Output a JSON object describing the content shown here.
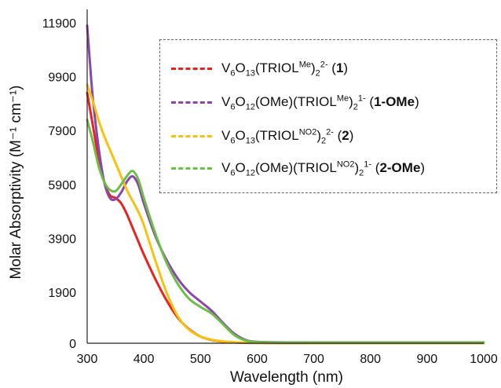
{
  "chart_data": {
    "type": "line",
    "title": "",
    "xlabel": "Wavelength (nm)",
    "ylabel": "Molar Absorptivity (M⁻¹ cm⁻¹)",
    "xlim": [
      300,
      1000
    ],
    "ylim": [
      0,
      12400
    ],
    "x_ticks": [
      "300",
      "400",
      "500",
      "600",
      "700",
      "800",
      "900",
      "1000"
    ],
    "y_ticks": [
      "0",
      "1900",
      "3900",
      "5900",
      "7900",
      "9900",
      "11900"
    ],
    "grid": false,
    "legend_position": "top-right",
    "series": [
      {
        "name": "V6O13(TRIOL^Me)2^2- (1)",
        "color": "#e8231f",
        "x": [
          300,
          310,
          320,
          330,
          340,
          350,
          360,
          370,
          380,
          390,
          400,
          420,
          440,
          460,
          480,
          500,
          520,
          540,
          560,
          580,
          600,
          650,
          700,
          800,
          900,
          1000
        ],
        "y": [
          9300,
          8100,
          6900,
          6000,
          5500,
          5400,
          5200,
          4800,
          4300,
          3800,
          3300,
          2400,
          1600,
          950,
          520,
          250,
          120,
          60,
          30,
          15,
          10,
          5,
          5,
          5,
          5,
          5
        ]
      },
      {
        "name": "V6O12(OMe)(TRIOL^Me)2^1- (1-OMe)",
        "color": "#8a46a8",
        "x": [
          300,
          305,
          310,
          320,
          330,
          340,
          350,
          360,
          370,
          380,
          390,
          400,
          420,
          440,
          460,
          480,
          500,
          520,
          540,
          560,
          580,
          600,
          650,
          700,
          800,
          900,
          1000
        ],
        "y": [
          11800,
          10400,
          9100,
          7300,
          6000,
          5400,
          5350,
          5600,
          6000,
          6200,
          5900,
          5200,
          4000,
          3100,
          2400,
          1900,
          1550,
          1200,
          750,
          350,
          120,
          50,
          30,
          30,
          30,
          30,
          30
        ]
      },
      {
        "name": "V6O13(TRIOL^NO2)2^2- (2)",
        "color": "#f7c20f",
        "x": [
          300,
          310,
          320,
          330,
          340,
          350,
          360,
          370,
          380,
          390,
          400,
          420,
          440,
          460,
          480,
          500,
          520,
          540,
          560,
          580,
          600,
          650,
          700,
          800,
          900,
          1000
        ],
        "y": [
          9600,
          9000,
          8300,
          7700,
          7200,
          6700,
          6200,
          5700,
          5300,
          4900,
          4400,
          3100,
          1900,
          1000,
          500,
          250,
          130,
          70,
          35,
          20,
          10,
          5,
          5,
          5,
          5,
          5
        ]
      },
      {
        "name": "V6O12(OMe)(TRIOL^NO2)2^1- (2-OMe)",
        "color": "#6cbe45",
        "x": [
          300,
          310,
          320,
          330,
          340,
          350,
          360,
          370,
          380,
          390,
          400,
          420,
          440,
          460,
          480,
          500,
          520,
          540,
          560,
          580,
          600,
          650,
          700,
          800,
          900,
          1000
        ],
        "y": [
          8300,
          7500,
          6600,
          6000,
          5700,
          5650,
          5900,
          6200,
          6400,
          6100,
          5400,
          4100,
          3000,
          2200,
          1650,
          1350,
          1100,
          700,
          300,
          100,
          40,
          20,
          20,
          20,
          20,
          20
        ]
      }
    ]
  },
  "legend": {
    "items": [
      {
        "formula": "V",
        "s1": "6",
        "f2": "O",
        "s2": "13",
        "f3": "(TRIOL",
        "sup1": "Me",
        "f4": ")",
        "s3": "2",
        "sup2": "2-",
        "f5": " (",
        "bold": "1",
        "f6": ")",
        "color": "#e8231f"
      },
      {
        "formula": "V",
        "s1": "6",
        "f2": "O",
        "s2": "12",
        "f3": "(OMe)(TRIOL",
        "sup1": "Me",
        "f4": ")",
        "s3": "2",
        "sup2": "1-",
        "f5": " (",
        "bold": "1-OMe",
        "f6": ")",
        "color": "#8a46a8"
      },
      {
        "formula": "V",
        "s1": "6",
        "f2": "O",
        "s2": "13",
        "f3": "(TRIOL",
        "sup1": "NO2",
        "f4": ")",
        "s3": "2",
        "sup2": "2-",
        "f5": " (",
        "bold": "2",
        "f6": ")",
        "color": "#f7c20f"
      },
      {
        "formula": "V",
        "s1": "6",
        "f2": "O",
        "s2": "12",
        "f3": "(OMe)(TRIOL",
        "sup1": "NO2",
        "f4": ")",
        "s3": "2",
        "sup2": "1-",
        "f5": " (",
        "bold": "2-OMe",
        "f6": ")",
        "color": "#6cbe45"
      }
    ]
  }
}
